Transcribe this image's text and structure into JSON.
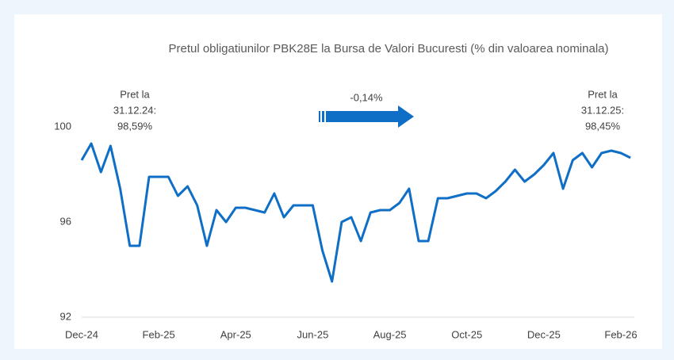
{
  "chart_data": {
    "type": "line",
    "title": "Pretul obligatiunilor PBK28E la Bursa de Valori Bucuresti (% din valoarea nominala)",
    "categories": [
      "Dec-24",
      null,
      null,
      null,
      null,
      null,
      null,
      null,
      "Feb-25",
      null,
      null,
      null,
      null,
      null,
      null,
      null,
      "Apr-25",
      null,
      null,
      null,
      null,
      null,
      null,
      null,
      "Jun-25",
      null,
      null,
      null,
      null,
      null,
      null,
      null,
      "Aug-25",
      null,
      null,
      null,
      null,
      null,
      null,
      null,
      "Oct-25",
      null,
      null,
      null,
      null,
      null,
      null,
      null,
      "Dec-25",
      null,
      null,
      null,
      null,
      null,
      null,
      null,
      "Feb-26",
      null
    ],
    "values": [
      98.6,
      99.3,
      98.1,
      99.2,
      97.4,
      95.0,
      95.0,
      97.9,
      97.9,
      97.9,
      97.1,
      97.5,
      96.7,
      95.0,
      96.5,
      96.0,
      96.6,
      96.6,
      96.5,
      96.4,
      97.2,
      96.2,
      96.7,
      96.7,
      96.7,
      94.8,
      93.5,
      96.0,
      96.2,
      95.2,
      96.4,
      96.5,
      96.5,
      96.8,
      97.4,
      95.2,
      95.2,
      97.0,
      97.0,
      97.1,
      97.2,
      97.2,
      97.0,
      97.3,
      97.7,
      98.2,
      97.7,
      98.0,
      98.4,
      98.9,
      97.4,
      98.6,
      98.9,
      98.3,
      98.9,
      99.0,
      98.9,
      98.7
    ],
    "color": "#0f6fc6",
    "ylim": [
      92,
      100
    ],
    "yticks": [
      92,
      96,
      100
    ],
    "grid": false,
    "annotations": [
      {
        "lines": [
          "Pret la",
          "31.12.24:",
          "98,59%"
        ]
      },
      {
        "text": "-0,14%"
      },
      {
        "lines": [
          "Pret la",
          "31.12.25:",
          "98,45%"
        ]
      }
    ]
  }
}
